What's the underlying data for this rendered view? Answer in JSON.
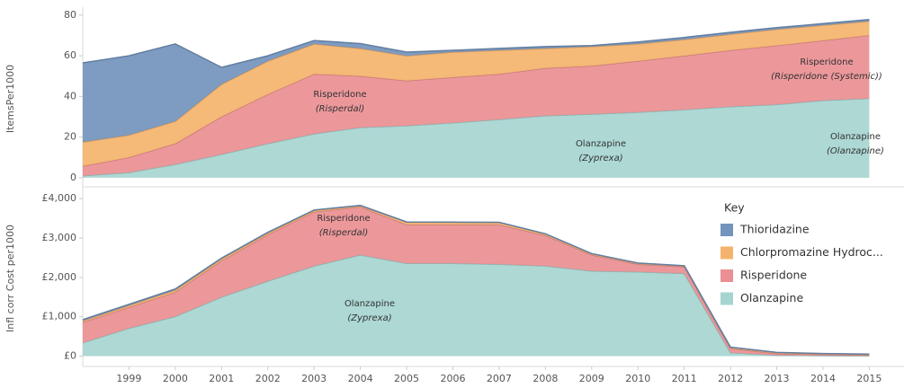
{
  "chart_data": [
    {
      "type": "area",
      "stacked": true,
      "y_label": "ItemsPer1000",
      "x": [
        1998,
        1999,
        2000,
        2001,
        2002,
        2003,
        2004,
        2005,
        2006,
        2007,
        2008,
        2009,
        2010,
        2011,
        2012,
        2013,
        2014,
        2015
      ],
      "xlim": [
        1998,
        2015.75
      ],
      "ylim": [
        -4,
        83
      ],
      "yticks": [
        0,
        20,
        40,
        60,
        80
      ],
      "grid": false,
      "series": [
        {
          "name": "Olanzapine",
          "color": "#a6d5d0",
          "values": [
            1,
            2.6,
            6.6,
            11.5,
            16.8,
            21.6,
            24.7,
            25.6,
            27,
            28.7,
            30.5,
            31.3,
            32.2,
            33.5,
            35,
            36,
            38,
            39
          ]
        },
        {
          "name": "Risperidone",
          "color": "#ea8f93",
          "values": [
            4.7,
            7.4,
            10.2,
            18.5,
            24.2,
            29.4,
            25.3,
            22.1,
            22.4,
            22.3,
            23.4,
            23.7,
            25.2,
            26.5,
            27.7,
            29,
            29.5,
            31
          ]
        },
        {
          "name": "Chlorpromazine Hydroc...",
          "color": "#f4b36d",
          "values": [
            11.9,
            11,
            11,
            16,
            16.4,
            14.8,
            13.6,
            12.3,
            12.4,
            11.7,
            9.7,
            9.5,
            8.4,
            8,
            7.9,
            8,
            7.5,
            7
          ]
        },
        {
          "name": "Thioridazine",
          "color": "#7394bd",
          "values": [
            38.9,
            39,
            38,
            8.3,
            2.6,
            1.7,
            2.4,
            1.8,
            0.9,
            0.9,
            0.9,
            0.5,
            1,
            1,
            0.9,
            0.8,
            0.8,
            0.8
          ]
        }
      ],
      "annotations": [
        {
          "lines": [
            "Risperidone",
            "(Risperdal)"
          ]
        },
        {
          "lines": [
            "Olanzapine",
            "(Zyprexa)"
          ]
        },
        {
          "lines": [
            "Risperidone",
            "(Risperidone (Systemic))"
          ]
        },
        {
          "lines": [
            "Olanzapine",
            "(Olanzapine)"
          ]
        }
      ]
    },
    {
      "type": "area",
      "stacked": true,
      "y_label": "Infl corr Cost per1000",
      "x": [
        1998,
        1999,
        2000,
        2001,
        2002,
        2003,
        2004,
        2005,
        2006,
        2007,
        2008,
        2009,
        2010,
        2011,
        2012,
        2013,
        2014,
        2015
      ],
      "xlim": [
        1998,
        2015.75
      ],
      "ylim": [
        -240,
        4210
      ],
      "yticks": [
        {
          "value": 0,
          "label": "£0"
        },
        {
          "value": 1000,
          "label": "£1,000"
        },
        {
          "value": 2000,
          "label": "£2,000"
        },
        {
          "value": 3000,
          "label": "£3,000"
        },
        {
          "value": 4000,
          "label": "£4,000"
        }
      ],
      "xticks": [
        1999,
        2000,
        2001,
        2002,
        2003,
        2004,
        2005,
        2006,
        2007,
        2008,
        2009,
        2010,
        2011,
        2012,
        2013,
        2014,
        2015
      ],
      "grid": false,
      "legend": "right",
      "legend_title": "Key",
      "series": [
        {
          "name": "Olanzapine",
          "color": "#a6d5d0",
          "values": [
            340,
            707,
            1006,
            1500,
            1906,
            2291,
            2570,
            2355,
            2355,
            2334,
            2291,
            2163,
            2141,
            2100,
            86,
            20,
            10,
            5
          ]
        },
        {
          "name": "Risperidone",
          "color": "#ea8f93",
          "values": [
            517,
            535,
            621,
            920,
            1178,
            1371,
            1220,
            985,
            985,
            1006,
            771,
            407,
            193,
            170,
            107,
            44,
            30,
            25
          ]
        },
        {
          "name": "Chlorpromazine Hydroc...",
          "color": "#f4b36d",
          "values": [
            40,
            45,
            50,
            50,
            45,
            40,
            30,
            60,
            60,
            55,
            40,
            30,
            25,
            20,
            30,
            25,
            20,
            15
          ]
        },
        {
          "name": "Thioridazine",
          "color": "#7394bd",
          "values": [
            30,
            30,
            30,
            20,
            15,
            10,
            10,
            10,
            5,
            5,
            5,
            5,
            5,
            5,
            5,
            5,
            5,
            5
          ]
        }
      ],
      "annotations": [
        {
          "lines": [
            "Risperidone",
            "(Risperdal)"
          ]
        },
        {
          "lines": [
            "Olanzapine",
            "(Zyprexa)"
          ]
        }
      ]
    }
  ]
}
